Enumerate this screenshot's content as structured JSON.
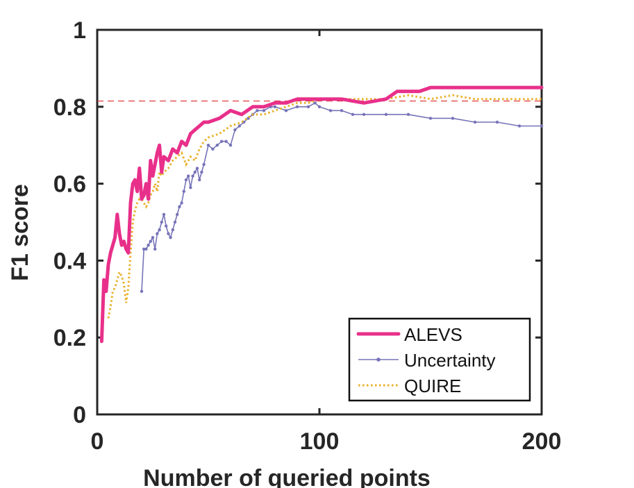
{
  "chart_data": {
    "type": "line",
    "title": "",
    "xlabel": "Number of queried points",
    "ylabel": "F1 score",
    "xlim": [
      0,
      200
    ],
    "ylim": [
      0,
      1
    ],
    "xticks": [
      0,
      100,
      200
    ],
    "xtick_labels": [
      "0",
      "100",
      "200"
    ],
    "yticks": [
      0,
      0.2,
      0.4,
      0.6,
      0.8,
      1
    ],
    "ytick_labels": [
      "0",
      "0.2",
      "0.4",
      "0.6",
      "0.8",
      "1"
    ],
    "grid": false,
    "legend_position": "bottom-right",
    "reference_line": {
      "y": 0.815,
      "style": "dashed",
      "color": "#e03a3a"
    },
    "series": [
      {
        "name": "ALEVS",
        "color": "#e8308a",
        "style": "solid-thick",
        "x": [
          2,
          3,
          4,
          5,
          6,
          7,
          8,
          9,
          10,
          11,
          12,
          13,
          14,
          15,
          16,
          17,
          18,
          19,
          20,
          21,
          22,
          23,
          24,
          25,
          26,
          27,
          28,
          29,
          30,
          32,
          34,
          36,
          38,
          40,
          42,
          44,
          46,
          48,
          50,
          55,
          60,
          65,
          70,
          75,
          80,
          85,
          90,
          95,
          100,
          110,
          120,
          130,
          135,
          140,
          145,
          150,
          155,
          160,
          170,
          180,
          190,
          200
        ],
        "values": [
          0.19,
          0.35,
          0.32,
          0.39,
          0.42,
          0.44,
          0.46,
          0.52,
          0.47,
          0.44,
          0.45,
          0.43,
          0.42,
          0.55,
          0.6,
          0.61,
          0.58,
          0.64,
          0.56,
          0.57,
          0.6,
          0.56,
          0.66,
          0.62,
          0.65,
          0.68,
          0.7,
          0.63,
          0.67,
          0.66,
          0.69,
          0.68,
          0.71,
          0.7,
          0.73,
          0.74,
          0.75,
          0.76,
          0.76,
          0.77,
          0.79,
          0.78,
          0.8,
          0.8,
          0.81,
          0.81,
          0.82,
          0.82,
          0.82,
          0.82,
          0.81,
          0.82,
          0.84,
          0.84,
          0.84,
          0.85,
          0.85,
          0.85,
          0.85,
          0.85,
          0.85,
          0.85
        ]
      },
      {
        "name": "Uncertainty",
        "color": "#7673b8",
        "style": "solid-markers",
        "x": [
          20,
          21,
          22,
          23,
          24,
          25,
          26,
          27,
          28,
          29,
          30,
          31,
          32,
          33,
          34,
          35,
          36,
          37,
          38,
          39,
          40,
          41,
          42,
          43,
          44,
          45,
          46,
          47,
          48,
          50,
          52,
          54,
          56,
          58,
          60,
          62,
          64,
          66,
          68,
          70,
          72,
          75,
          78,
          80,
          85,
          90,
          95,
          98,
          100,
          105,
          110,
          115,
          120,
          130,
          140,
          150,
          160,
          170,
          180,
          190,
          200
        ],
        "values": [
          0.32,
          0.43,
          0.43,
          0.44,
          0.45,
          0.46,
          0.43,
          0.47,
          0.48,
          0.5,
          0.52,
          0.49,
          0.47,
          0.46,
          0.48,
          0.5,
          0.52,
          0.54,
          0.55,
          0.58,
          0.61,
          0.62,
          0.59,
          0.62,
          0.63,
          0.64,
          0.61,
          0.63,
          0.65,
          0.7,
          0.69,
          0.7,
          0.71,
          0.71,
          0.7,
          0.74,
          0.75,
          0.76,
          0.77,
          0.78,
          0.79,
          0.79,
          0.8,
          0.8,
          0.79,
          0.8,
          0.8,
          0.81,
          0.8,
          0.79,
          0.79,
          0.78,
          0.78,
          0.78,
          0.78,
          0.77,
          0.77,
          0.76,
          0.76,
          0.75,
          0.75
        ]
      },
      {
        "name": "QUIRE",
        "color": "#e8b02a",
        "style": "dotted",
        "x": [
          5,
          6,
          7,
          8,
          9,
          10,
          11,
          12,
          13,
          14,
          15,
          16,
          17,
          18,
          19,
          20,
          21,
          22,
          23,
          24,
          25,
          26,
          27,
          28,
          29,
          30,
          32,
          34,
          36,
          38,
          40,
          42,
          44,
          46,
          48,
          50,
          55,
          60,
          65,
          70,
          75,
          80,
          85,
          90,
          95,
          100,
          110,
          120,
          130,
          140,
          150,
          160,
          170,
          180,
          190,
          200
        ],
        "values": [
          0.25,
          0.28,
          0.32,
          0.33,
          0.35,
          0.37,
          0.36,
          0.34,
          0.29,
          0.33,
          0.42,
          0.5,
          0.53,
          0.55,
          0.56,
          0.56,
          0.55,
          0.54,
          0.55,
          0.57,
          0.58,
          0.6,
          0.58,
          0.63,
          0.62,
          0.63,
          0.64,
          0.66,
          0.67,
          0.68,
          0.65,
          0.67,
          0.66,
          0.69,
          0.71,
          0.72,
          0.73,
          0.75,
          0.76,
          0.78,
          0.78,
          0.79,
          0.8,
          0.81,
          0.81,
          0.82,
          0.82,
          0.82,
          0.82,
          0.83,
          0.82,
          0.83,
          0.82,
          0.82,
          0.82,
          0.82
        ]
      }
    ]
  },
  "legend": {
    "items": [
      "ALEVS",
      "Uncertainty",
      "QUIRE"
    ]
  }
}
